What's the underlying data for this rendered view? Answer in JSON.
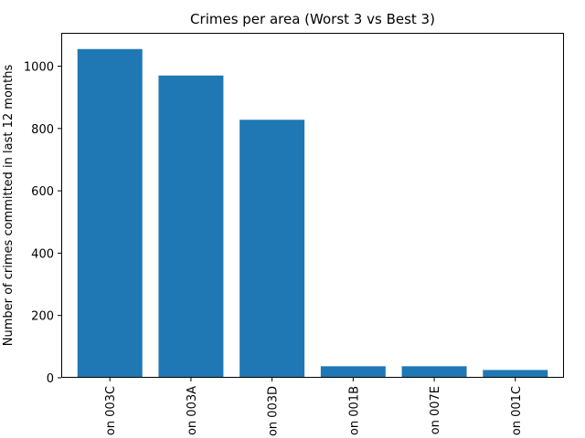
{
  "chart_data": {
    "type": "bar",
    "title": "Crimes per area (Worst 3 vs Best 3)",
    "xlabel": "",
    "ylabel": "Number of crimes committed in last 12 months",
    "categories": [
      "on 003C",
      "on 003A",
      "on 003D",
      "on 001B",
      "on 007E",
      "on 001C"
    ],
    "values": [
      1055,
      970,
      828,
      37,
      37,
      25
    ],
    "ylim": [
      0,
      1107
    ],
    "yticks": [
      0,
      200,
      400,
      600,
      800,
      1000
    ],
    "grid": false,
    "legend": "none",
    "bar_color": "#1f77b4"
  }
}
